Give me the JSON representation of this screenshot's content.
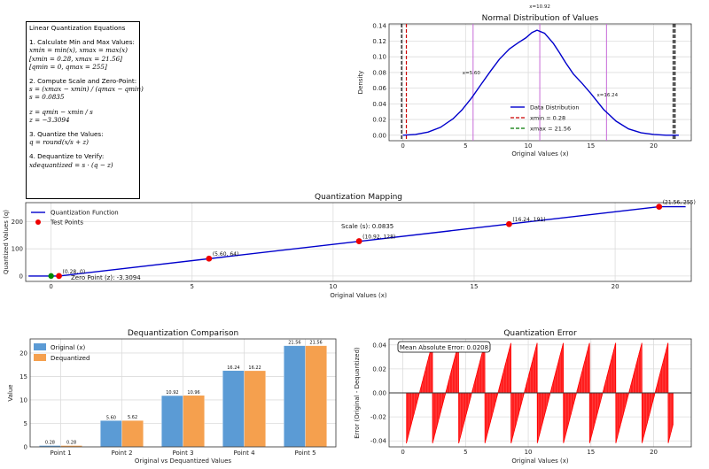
{
  "equations_box": {
    "title": "Linear Quantization Equations",
    "step1_title": "1. Calculate Min and Max Values:",
    "step1_l1": "xmin = min(x), xmax = max(x)",
    "step1_l2": "[xmin = 0.28, xmax = 21.56]",
    "step1_l3": "[qmin = 0, qmax = 255]",
    "step2_title": "2. Compute Scale and Zero-Point:",
    "step2_l1": "s = (xmax − xmin) / (qmax − qmin)",
    "step2_l2": "s = 0.0835",
    "step2_l3": "z = qmin − xmin / s",
    "step2_l4": "z = −3.3094",
    "step3_title": "3. Quantize the Values:",
    "step3_l1": "q = round(x/s + z)",
    "step4_title": "4. Dequantize to Verify:",
    "step4_l1": "xdequantized = s · (q − z)"
  },
  "chart_data": [
    {
      "id": "normal",
      "type": "line",
      "title": "Normal Distribution of Values",
      "xlabel": "Original Values (x)",
      "ylabel": "Density",
      "xlim": [
        -1.1,
        23.0
      ],
      "ylim": [
        -0.007,
        0.142
      ],
      "xticks": [
        0,
        5,
        10,
        15,
        20
      ],
      "yticks": [
        0.0,
        0.02,
        0.04,
        0.06,
        0.08,
        0.1,
        0.12,
        0.14
      ],
      "grid": true,
      "x": [
        0.0,
        1.0,
        2.0,
        3.0,
        4.0,
        4.7,
        5.5,
        6.2,
        7.0,
        7.7,
        8.5,
        9.2,
        9.8,
        10.3,
        10.7,
        11.3,
        12.0,
        12.5,
        13.0,
        13.6,
        14.3,
        15.0,
        16.0,
        17.0,
        18.0,
        19.0,
        20.0,
        21.0,
        22.0
      ],
      "values": [
        0.0,
        0.001,
        0.004,
        0.01,
        0.021,
        0.032,
        0.048,
        0.064,
        0.082,
        0.097,
        0.11,
        0.118,
        0.124,
        0.131,
        0.134,
        0.13,
        0.117,
        0.105,
        0.092,
        0.078,
        0.066,
        0.053,
        0.033,
        0.018,
        0.008,
        0.003,
        0.001,
        0.0,
        0.0
      ],
      "series_name": "Data Distribution",
      "xmin_label": "xmin = 0.28",
      "xmax_label": "xmax = 21.56",
      "xmin_value": 0.28,
      "xmax_value": 21.56,
      "black_lines": [
        -0.1,
        21.7
      ],
      "violet_lines": [
        {
          "x": 5.6,
          "label": "x=5.60"
        },
        {
          "x": 10.92,
          "label": "x=10.92"
        },
        {
          "x": 16.24,
          "label": "x=16.24"
        }
      ],
      "legend_position": "lower-right"
    },
    {
      "id": "mapping",
      "type": "line",
      "title": "Quantization Mapping",
      "xlabel": "Original Values (x)",
      "ylabel": "Quantized Values (q)",
      "xlim": [
        -0.9,
        22.7
      ],
      "ylim": [
        -20,
        270
      ],
      "xticks": [
        0,
        5,
        10,
        15,
        20
      ],
      "yticks": [
        0,
        100,
        200
      ],
      "grid": true,
      "line": {
        "name": "Quantization Function",
        "x": [
          -0.8,
          0.28,
          21.56,
          22.5
        ],
        "y": [
          0,
          0,
          255,
          255
        ]
      },
      "points": {
        "name": "Test Points",
        "x": [
          0.28,
          5.6,
          10.92,
          16.24,
          21.56
        ],
        "y": [
          0,
          64,
          128,
          191,
          255
        ],
        "labels": [
          "(0.28, 0)",
          "(5.60, 64)",
          "(10.92, 128)",
          "(16.24, 191)",
          "(21.56, 255)"
        ]
      },
      "green_point": {
        "x": 0.0,
        "y": 0
      },
      "zero_point_label": "Zero Point (z): -3.3094",
      "scale_label": "Scale (s): 0.0835",
      "legend_position": "upper-left"
    },
    {
      "id": "dequant",
      "type": "bar",
      "title": "Dequantization Comparison",
      "xlabel": "Original vs Dequantized Values",
      "ylabel": "Value",
      "categories": [
        "Point 1",
        "Point 2",
        "Point 3",
        "Point 4",
        "Point 5"
      ],
      "series": [
        {
          "name": "Original (x)",
          "values": [
            0.28,
            5.6,
            10.92,
            16.24,
            21.56
          ],
          "labels": [
            "0.28",
            "5.60",
            "10.92",
            "16.24",
            "21.56"
          ],
          "color": "#5b9bd5"
        },
        {
          "name": "Dequantized",
          "values": [
            0.28,
            5.62,
            10.96,
            16.22,
            21.56
          ],
          "labels": [
            "0.28",
            "5.62",
            "10.96",
            "16.22",
            "21.56"
          ],
          "color": "#f5a04e"
        }
      ],
      "ylim": [
        0,
        23
      ],
      "yticks": [
        0,
        5,
        10,
        15,
        20
      ],
      "grid": true,
      "legend_position": "upper-left"
    },
    {
      "id": "error",
      "type": "area",
      "title": "Quantization Error",
      "xlabel": "Original Values (x)",
      "ylabel": "Error (Original - Dequantized)",
      "xlim": [
        -1.1,
        23.0
      ],
      "ylim": [
        -0.045,
        0.045
      ],
      "xticks": [
        0,
        5,
        10,
        15,
        20
      ],
      "yticks": [
        -0.04,
        -0.02,
        0.0,
        0.02,
        0.04
      ],
      "grid": true,
      "x_range": [
        0.28,
        21.56
      ],
      "scale": 0.0835,
      "error_amplitude": 0.042,
      "mae_label": "Mean Absolute Error: 0.0208",
      "color": "#ff0000"
    }
  ]
}
